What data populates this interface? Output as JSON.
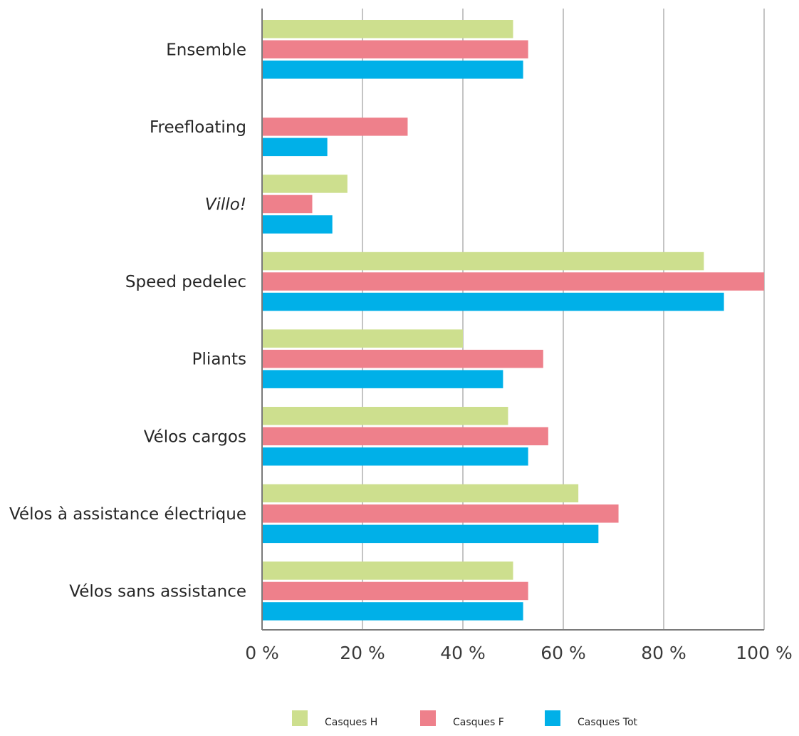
{
  "chart_data": {
    "type": "bar",
    "orientation": "horizontal",
    "categories": [
      "Ensemble",
      "Freefloating",
      "Villo!",
      "Speed pedelec",
      "Pliants",
      "Vélos cargos",
      "Vélos à assistance électrique",
      "Vélos sans assistance"
    ],
    "italic_categories": [
      "Villo!"
    ],
    "series": [
      {
        "name": "Casques H",
        "color": "#cddf8e",
        "values": [
          50,
          0,
          17,
          88,
          40,
          49,
          63,
          50
        ]
      },
      {
        "name": "Casques F",
        "color": "#ee808b",
        "values": [
          53,
          29,
          10,
          100,
          56,
          57,
          71,
          53
        ]
      },
      {
        "name": "Casques Tot",
        "color": "#00b0e8",
        "values": [
          52,
          13,
          14,
          92,
          48,
          53,
          67,
          52
        ]
      }
    ],
    "xlim": [
      0,
      100
    ],
    "xticks": [
      0,
      20,
      40,
      60,
      80,
      100
    ],
    "xtick_labels": [
      "0 %",
      "20 %",
      "40 %",
      "60 %",
      "80 %",
      "100 %"
    ],
    "grid": "vertical",
    "legend": "bottom-center",
    "title": "",
    "xlabel": "",
    "ylabel": ""
  }
}
